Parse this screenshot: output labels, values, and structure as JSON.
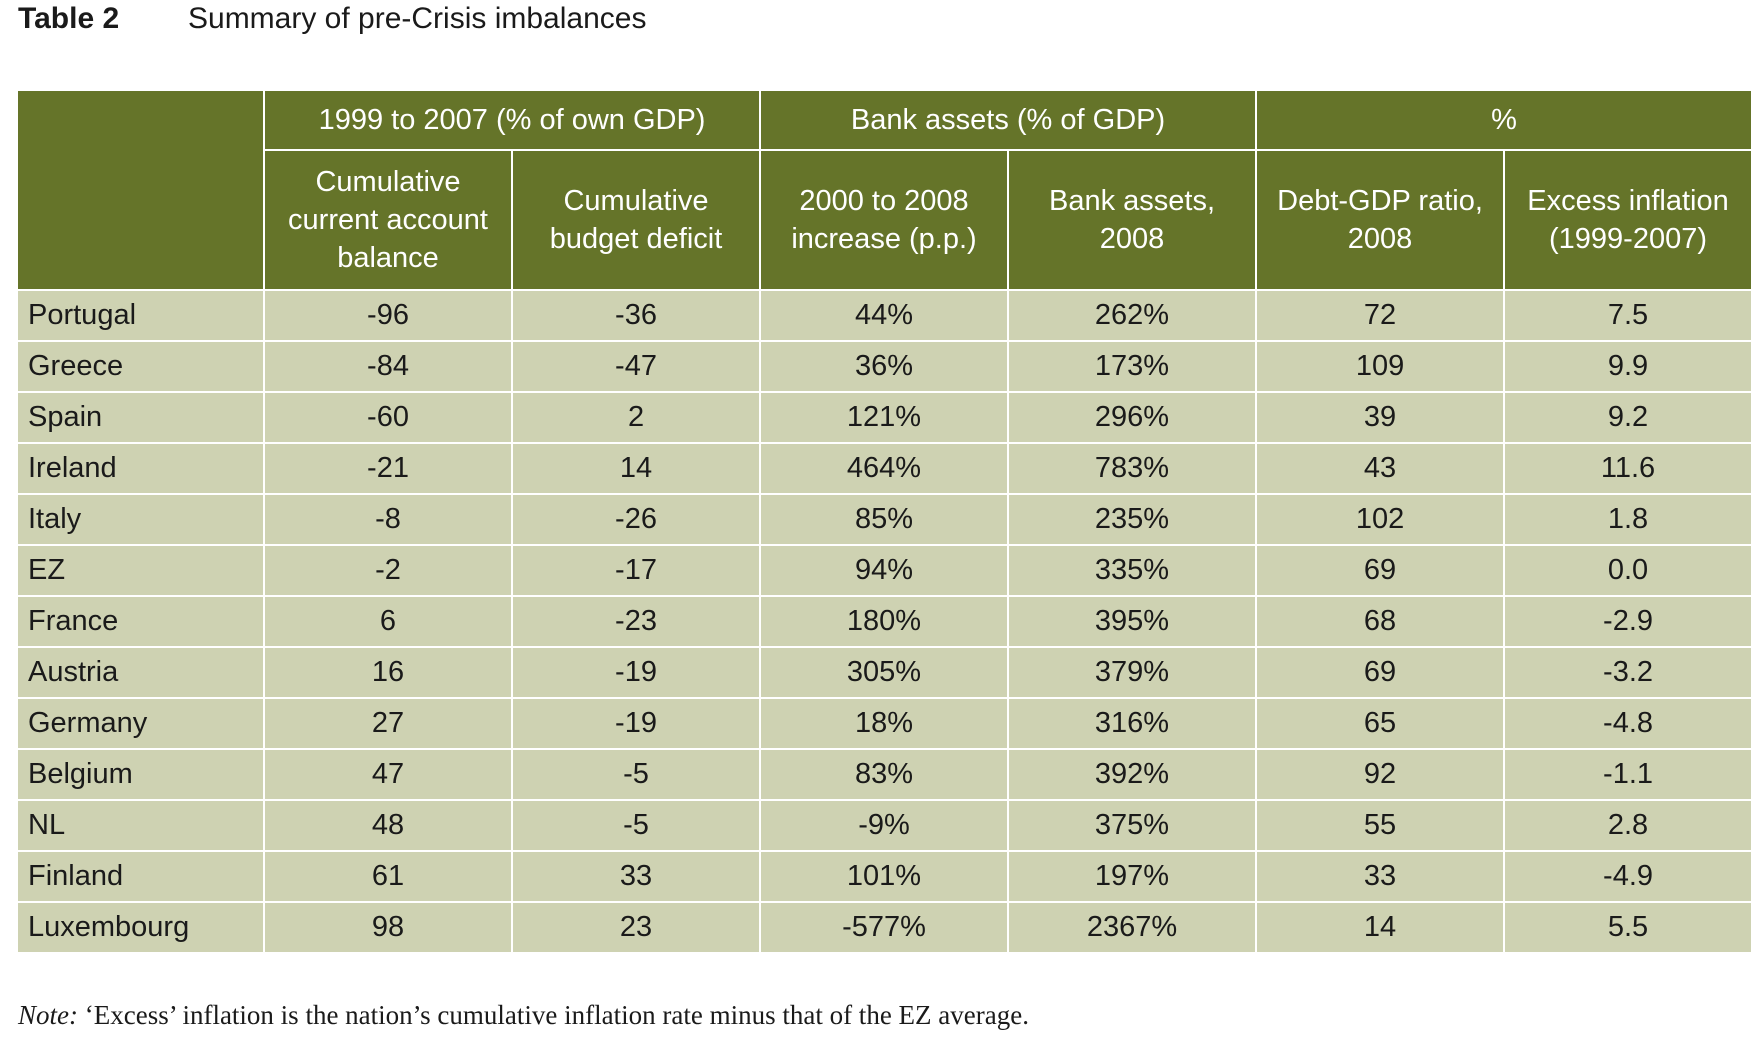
{
  "title": {
    "label": "Table 2",
    "text": "Summary of pre-Crisis imbalances"
  },
  "table": {
    "group_headers": [
      "1999 to 2007 (% of own GDP)",
      "Bank assets (% of GDP)",
      "%"
    ],
    "column_headers": [
      "Cumulative current account balance",
      "Cumulative budget deficit",
      "2000 to 2008 increase (p.p.)",
      "Bank assets, 2008",
      "Debt-GDP ratio, 2008",
      "Excess inflation (1999-2007)"
    ],
    "rows": [
      {
        "country": "Portugal",
        "values": [
          "-96",
          "-36",
          "44%",
          "262%",
          "72",
          "7.5"
        ]
      },
      {
        "country": "Greece",
        "values": [
          "-84",
          "-47",
          "36%",
          "173%",
          "109",
          "9.9"
        ]
      },
      {
        "country": "Spain",
        "values": [
          "-60",
          "2",
          "121%",
          "296%",
          "39",
          "9.2"
        ]
      },
      {
        "country": "Ireland",
        "values": [
          "-21",
          "14",
          "464%",
          "783%",
          "43",
          "11.6"
        ]
      },
      {
        "country": "Italy",
        "values": [
          "-8",
          "-26",
          "85%",
          "235%",
          "102",
          "1.8"
        ]
      },
      {
        "country": "EZ",
        "values": [
          "-2",
          "-17",
          "94%",
          "335%",
          "69",
          "0.0"
        ]
      },
      {
        "country": "France",
        "values": [
          "6",
          "-23",
          "180%",
          "395%",
          "68",
          "-2.9"
        ]
      },
      {
        "country": "Austria",
        "values": [
          "16",
          "-19",
          "305%",
          "379%",
          "69",
          "-3.2"
        ]
      },
      {
        "country": "Germany",
        "values": [
          "27",
          "-19",
          "18%",
          "316%",
          "65",
          "-4.8"
        ]
      },
      {
        "country": "Belgium",
        "values": [
          "47",
          "-5",
          "83%",
          "392%",
          "92",
          "-1.1"
        ]
      },
      {
        "country": "NL",
        "values": [
          "48",
          "-5",
          "-9%",
          "375%",
          "55",
          "2.8"
        ]
      },
      {
        "country": "Finland",
        "values": [
          "61",
          "33",
          "101%",
          "197%",
          "33",
          "-4.9"
        ]
      },
      {
        "country": "Luxembourg",
        "values": [
          "98",
          "23",
          "-577%",
          "2367%",
          "14",
          "5.5"
        ]
      }
    ]
  },
  "note": {
    "label": "Note:",
    "text": "‘Excess’ inflation is the nation’s cumulative inflation rate minus that of the EZ average."
  },
  "colors": {
    "header_background": "#657429",
    "body_background": "#ced2b2",
    "header_text": "#ffffff"
  }
}
